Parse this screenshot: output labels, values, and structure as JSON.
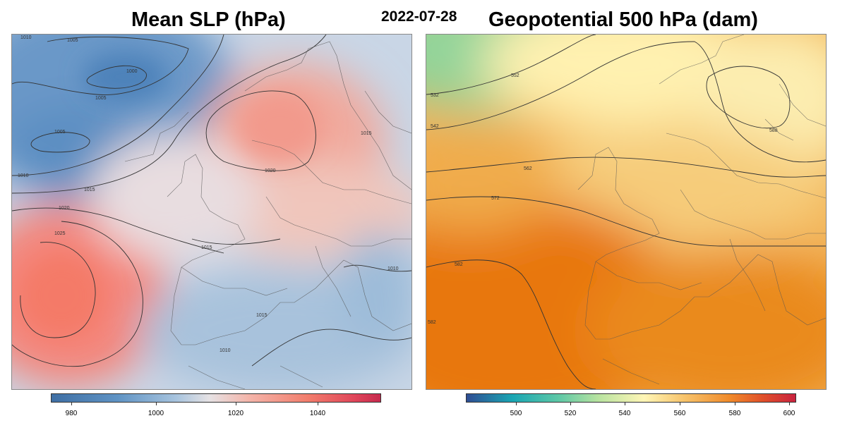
{
  "titles": {
    "left": "Mean SLP (hPa)",
    "date": "2022-07-28",
    "right": "Geopotential 500 hPa (dam)"
  },
  "slp": {
    "contour_labels": [
      "1010",
      "1005",
      "1000",
      "1005",
      "1005",
      "1010",
      "1015",
      "1020",
      "1025",
      "1020",
      "1015",
      "1015",
      "1010",
      "1010",
      "1015"
    ],
    "colorbar_ticks": [
      "980",
      "1000",
      "1020",
      "1040"
    ]
  },
  "z500": {
    "contour_labels": [
      "532",
      "542",
      "552",
      "562",
      "572",
      "582",
      "588",
      "582"
    ],
    "colorbar_ticks": [
      "500",
      "520",
      "540",
      "560",
      "580",
      "600"
    ]
  },
  "colors": {
    "low": "#4a7fb6",
    "high": "#f47c6a",
    "z_low": "#9fd89a",
    "z_high": "#e8770f"
  }
}
